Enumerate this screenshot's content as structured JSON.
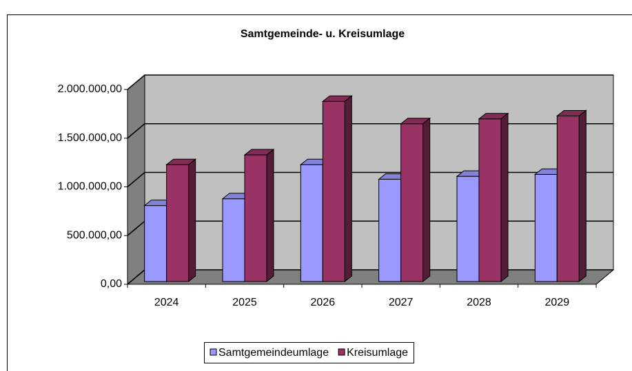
{
  "chart_data": {
    "type": "bar3d",
    "title": "Samtgemeinde- u. Kreisumlage",
    "categories": [
      "2024",
      "2025",
      "2026",
      "2027",
      "2028",
      "2029"
    ],
    "series": [
      {
        "name": "Samtgemeindeumlage",
        "color": "#9999ff",
        "values": [
          780000,
          850000,
          1200000,
          1050000,
          1080000,
          1100000
        ]
      },
      {
        "name": "Kreisumlage",
        "color": "#993366",
        "values": [
          1200000,
          1300000,
          1850000,
          1620000,
          1670000,
          1700000
        ]
      }
    ],
    "ylim": [
      0,
      2000000
    ],
    "yticks": [
      {
        "value": 0,
        "label": "0,00"
      },
      {
        "value": 500000,
        "label": "500.000,00"
      },
      {
        "value": 1000000,
        "label": "1.000.000,00"
      },
      {
        "value": 1500000,
        "label": "1.500.000,00"
      },
      {
        "value": 2000000,
        "label": "2.000.000,00"
      }
    ],
    "grid": true,
    "legend": "bottom"
  }
}
